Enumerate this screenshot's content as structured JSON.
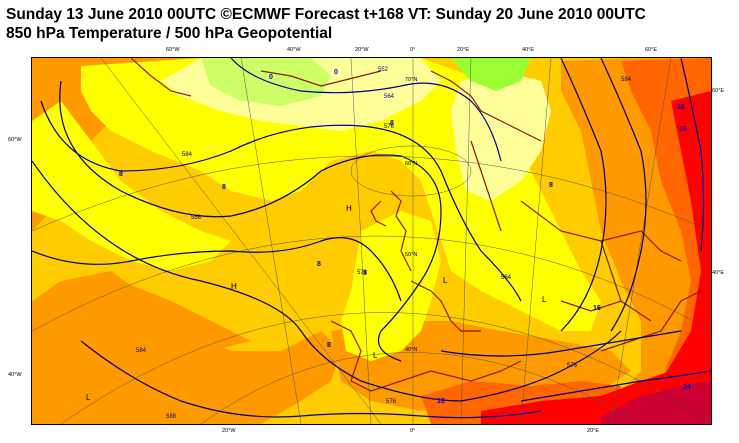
{
  "title_line1": "Sunday 13 June 2010 00UTC ©ECMWF Forecast t+168 VT: Sunday 20 June 2010 00UTC",
  "title_line2": "850 hPa Temperature / 500 hPa Geopotential",
  "top_lon_labels": [
    "60°W",
    "40°W",
    "20°W",
    "0°",
    "20°E",
    "40°E",
    "60°E"
  ],
  "bottom_lon_labels": [
    "20°W",
    "0°",
    "20°E"
  ],
  "left_lat_labels": [
    "60°W",
    "40°W"
  ],
  "right_lat_labels": [
    "60°E",
    "40°E"
  ],
  "inner_lat_labels": [
    "70°N",
    "60°N",
    "50°N",
    "40°N"
  ],
  "pressure_centres": [
    "H",
    "H",
    "L",
    "L",
    "L",
    "L"
  ],
  "contour_labels": [
    "552",
    "564",
    "576",
    "584",
    "588",
    "576",
    "584",
    "576",
    "576",
    "584",
    "588",
    "584"
  ],
  "isotherm_labels": [
    "0",
    "0",
    "8",
    "8",
    "8",
    "8",
    "8",
    "8",
    "8",
    "16",
    "16",
    "16",
    "24",
    "16"
  ],
  "colors": {
    "light_yellow": "#ffff99",
    "yellow": "#ffff00",
    "gold": "#ffcc00",
    "orange": "#ff9900",
    "dark_orange": "#ff6600",
    "red": "#ff0000",
    "dark_red": "#cc0033",
    "green": "#99ff33",
    "light_green": "#ccff66",
    "contour": "#00008b",
    "coast": "#8b1a1a"
  }
}
